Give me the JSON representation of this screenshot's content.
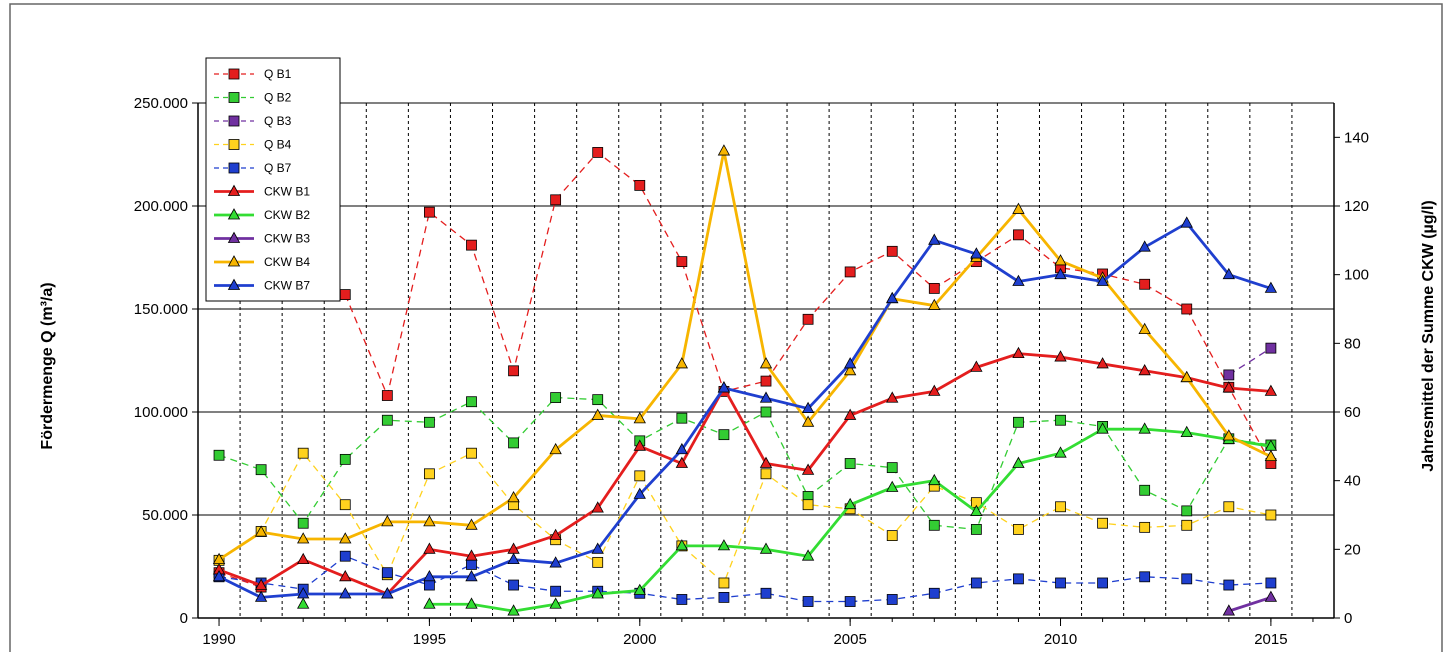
{
  "chart_data": {
    "type": "line",
    "x": [
      1990,
      1991,
      1992,
      1993,
      1994,
      1995,
      1996,
      1997,
      1998,
      1999,
      2000,
      2001,
      2002,
      2003,
      2004,
      2005,
      2006,
      2007,
      2008,
      2009,
      2010,
      2011,
      2012,
      2013,
      2014,
      2015
    ],
    "xlim": [
      1989.5,
      2016.5
    ],
    "x_ticks": [
      "1990",
      "1995",
      "2000",
      "2005",
      "2010",
      "2015"
    ],
    "ylabel": "Fördermenge Q (m³/a)",
    "ylim": [
      0,
      250000
    ],
    "y_ticks": [
      "0",
      "50.000",
      "100.000",
      "150.000",
      "200.000",
      "250.000"
    ],
    "y2label": "Jahresmittel der Summe CKW (µg/l)",
    "y2lim": [
      0,
      150
    ],
    "y2_ticks": [
      "0",
      "20",
      "40",
      "60",
      "80",
      "100",
      "120",
      "140"
    ],
    "grid": true,
    "legend_position": "top-left",
    "series": [
      {
        "name": "Q B1",
        "axis": "left",
        "style": "dashed",
        "marker": "square",
        "color": "#e41e1e",
        "values": [
          22000,
          15000,
          null,
          157000,
          108000,
          197000,
          181000,
          120000,
          203000,
          226000,
          210000,
          173000,
          110000,
          115000,
          145000,
          168000,
          178000,
          160000,
          173000,
          186000,
          170000,
          167000,
          162000,
          150000,
          112000,
          75000
        ]
      },
      {
        "name": "Q B2",
        "axis": "left",
        "style": "dashed",
        "marker": "square",
        "color": "#33cc33",
        "values": [
          79000,
          72000,
          46000,
          77000,
          96000,
          95000,
          105000,
          85000,
          107000,
          106000,
          86000,
          97000,
          89000,
          100000,
          59000,
          75000,
          73000,
          45000,
          43000,
          95000,
          96000,
          93000,
          62000,
          52000,
          87000,
          84000
        ]
      },
      {
        "name": "Q B3",
        "axis": "left",
        "style": "dashed",
        "marker": "square",
        "color": "#7030a0",
        "values": [
          null,
          null,
          null,
          null,
          null,
          null,
          null,
          null,
          null,
          null,
          null,
          null,
          null,
          null,
          null,
          null,
          null,
          null,
          null,
          null,
          null,
          null,
          null,
          null,
          118000,
          131000
        ]
      },
      {
        "name": "Q B4",
        "axis": "left",
        "style": "dashed",
        "marker": "square",
        "color": "#ffd21e",
        "values": [
          28000,
          42000,
          80000,
          55000,
          21000,
          70000,
          80000,
          55000,
          38000,
          27000,
          69000,
          35000,
          17000,
          70000,
          55000,
          53000,
          40000,
          64000,
          56000,
          43000,
          54000,
          46000,
          44000,
          45000,
          54000,
          50000
        ]
      },
      {
        "name": "Q B7",
        "axis": "left",
        "style": "dashed",
        "marker": "square",
        "color": "#1f3fcf",
        "values": [
          20000,
          17000,
          14000,
          30000,
          22000,
          16000,
          26000,
          16000,
          13000,
          13000,
          12000,
          9000,
          10000,
          12000,
          8000,
          8000,
          9000,
          12000,
          17000,
          19000,
          17000,
          17000,
          20000,
          19000,
          16000,
          17000
        ]
      },
      {
        "name": "CKW B1",
        "axis": "right",
        "style": "solid",
        "marker": "triangle",
        "color": "#e41e1e",
        "values": [
          14,
          9.5,
          17,
          12,
          7,
          20,
          18,
          20,
          24,
          32,
          50,
          45,
          67,
          45,
          43,
          59,
          64,
          66,
          73,
          77,
          76,
          74,
          72,
          70,
          67,
          66
        ]
      },
      {
        "name": "CKW B2",
        "axis": "right",
        "style": "solid",
        "marker": "triangle",
        "color": "#33dd33",
        "values": [
          null,
          null,
          4,
          null,
          null,
          4,
          4,
          2,
          4,
          7,
          8,
          21,
          21,
          20,
          18,
          33,
          38,
          40,
          31,
          45,
          48,
          55,
          55,
          54,
          52,
          50
        ]
      },
      {
        "name": "CKW B3",
        "axis": "right",
        "style": "solid",
        "marker": "triangle",
        "color": "#7030a0",
        "values": [
          null,
          null,
          null,
          null,
          null,
          null,
          null,
          null,
          null,
          null,
          null,
          null,
          null,
          null,
          null,
          null,
          null,
          null,
          null,
          null,
          null,
          null,
          null,
          null,
          2,
          6
        ]
      },
      {
        "name": "CKW B4",
        "axis": "right",
        "style": "solid",
        "marker": "triangle",
        "color": "#f7b500",
        "values": [
          17,
          25,
          23,
          23,
          28,
          28,
          27,
          35,
          49,
          59,
          58,
          74,
          136,
          74,
          57,
          72,
          93,
          91,
          105,
          119,
          104,
          99,
          84,
          70,
          53,
          47
        ]
      },
      {
        "name": "CKW B7",
        "axis": "right",
        "style": "solid",
        "marker": "triangle",
        "color": "#1f3fcf",
        "values": [
          12,
          6,
          7,
          7,
          7,
          12,
          12,
          17,
          16,
          20,
          36,
          49,
          67,
          64,
          61,
          74,
          93,
          110,
          106,
          98,
          100,
          98,
          108,
          115,
          100,
          96
        ]
      }
    ]
  }
}
